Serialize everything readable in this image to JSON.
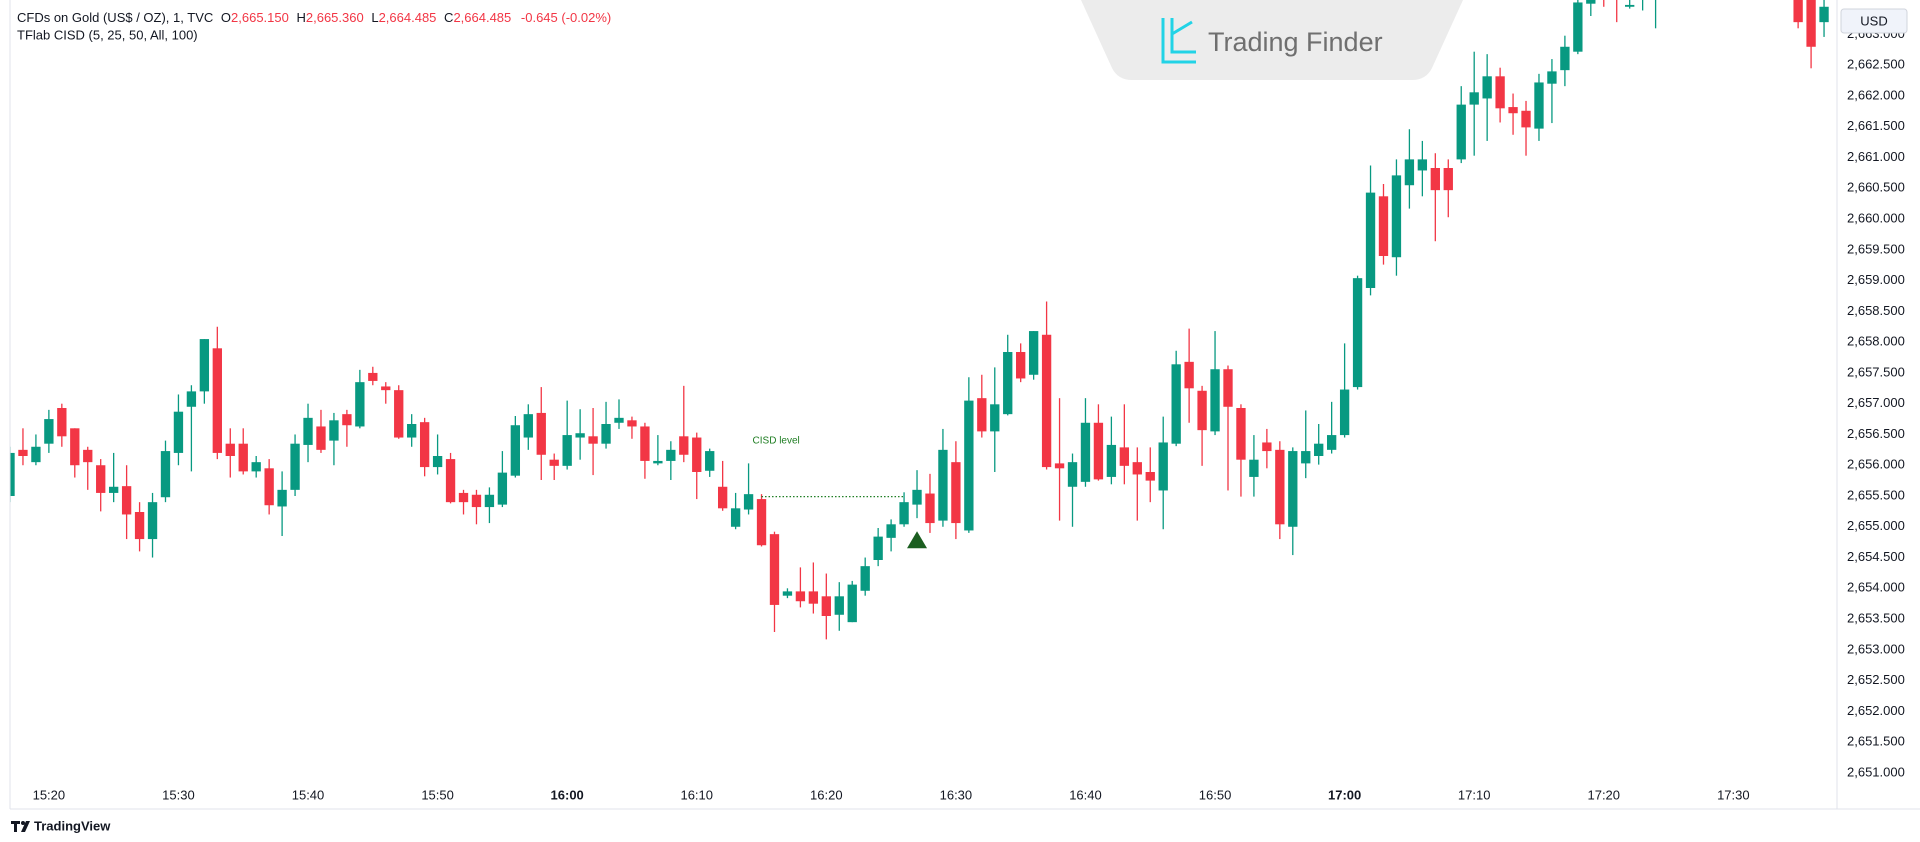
{
  "header": {
    "symbol": "CFDs on Gold (US$ / OZ), 1, TVC",
    "ohlc": [
      {
        "label": "O",
        "value": "2,665.150"
      },
      {
        "label": "H",
        "value": "2,665.360"
      },
      {
        "label": "L",
        "value": "2,664.485"
      },
      {
        "label": "C",
        "value": "2,664.485"
      }
    ],
    "change": "-0.645 (-0.02%)",
    "indicator": "TFlab CISD (5, 25, 50, All, 100)",
    "currency": "USD",
    "watermark": "Trading Finder",
    "brand": "TradingView"
  },
  "chart_data": {
    "type": "candlestick",
    "up_color": "#089981",
    "down_color": "#f23645",
    "grid": false,
    "x": [
      "15:17",
      "15:18",
      "15:19",
      "15:20",
      "15:21",
      "15:22",
      "15:23",
      "15:24",
      "15:25",
      "15:26",
      "15:27",
      "15:28",
      "15:29",
      "15:30",
      "15:31",
      "15:32",
      "15:33",
      "15:34",
      "15:35",
      "15:36",
      "15:37",
      "15:38",
      "15:39",
      "15:40",
      "15:41",
      "15:42",
      "15:43",
      "15:44",
      "15:45",
      "15:46",
      "15:47",
      "15:48",
      "15:49",
      "15:50",
      "15:51",
      "15:52",
      "15:53",
      "15:54",
      "15:55",
      "15:56",
      "15:57",
      "15:58",
      "15:59",
      "16:00",
      "16:01",
      "16:02",
      "16:03",
      "16:04",
      "16:05",
      "16:06",
      "16:07",
      "16:08",
      "16:09",
      "16:10",
      "16:11",
      "16:12",
      "16:13",
      "16:14",
      "16:15",
      "16:16",
      "16:17",
      "16:18",
      "16:19",
      "16:20",
      "16:21",
      "16:22",
      "16:23",
      "16:24",
      "16:25",
      "16:26",
      "16:27",
      "16:28",
      "16:29",
      "16:30",
      "16:31",
      "16:32",
      "16:33",
      "16:34",
      "16:35",
      "16:36",
      "16:37",
      "16:38",
      "16:39",
      "16:40",
      "16:41",
      "16:42",
      "16:43",
      "16:44",
      "16:45",
      "16:46",
      "16:47",
      "16:48",
      "16:49",
      "16:50",
      "16:51",
      "16:52",
      "16:53",
      "16:54",
      "16:55",
      "16:56",
      "16:57",
      "16:58",
      "16:59",
      "17:00",
      "17:01",
      "17:02",
      "17:03",
      "17:04",
      "17:05",
      "17:06",
      "17:07",
      "17:08",
      "17:09",
      "17:10",
      "17:11",
      "17:12",
      "17:13",
      "17:14",
      "17:15",
      "17:16",
      "17:17",
      "17:18",
      "17:19",
      "17:20",
      "17:21",
      "17:22",
      "17:23",
      "17:24",
      "17:35",
      "17:36",
      "17:37"
    ],
    "open": [
      2655.5,
      2656.25,
      2656.05,
      2656.35,
      2656.93,
      2656.6,
      2656.25,
      2656.0,
      2655.55,
      2655.66,
      2655.24,
      2654.8,
      2655.48,
      2656.2,
      2656.95,
      2657.2,
      2657.9,
      2656.35,
      2656.35,
      2655.9,
      2655.95,
      2655.33,
      2655.6,
      2656.33,
      2656.63,
      2656.4,
      2656.83,
      2656.63,
      2657.5,
      2657.28,
      2657.22,
      2656.45,
      2656.7,
      2655.97,
      2656.1,
      2655.55,
      2655.52,
      2655.32,
      2655.36,
      2655.83,
      2656.45,
      2656.85,
      2656.09,
      2655.99,
      2656.45,
      2656.47,
      2656.35,
      2656.69,
      2656.73,
      2656.63,
      2656.03,
      2656.07,
      2656.47,
      2656.45,
      2655.91,
      2655.65,
      2655.0,
      2655.28,
      2655.45,
      2654.88,
      2653.88,
      2653.95,
      2653.95,
      2653.87,
      2653.57,
      2653.45,
      2653.96,
      2654.46,
      2654.82,
      2655.04,
      2655.36,
      2655.54,
      2655.1,
      2656.05,
      2654.94,
      2657.09,
      2656.55,
      2656.83,
      2657.84,
      2657.47,
      2658.12,
      2656.03,
      2655.65,
      2655.73,
      2656.69,
      2655.81,
      2656.29,
      2656.05,
      2655.89,
      2655.59,
      2656.35,
      2657.68,
      2657.21,
      2656.55,
      2657.56,
      2656.93,
      2655.81,
      2656.37,
      2656.25,
      2655.0,
      2656.03,
      2656.15,
      2656.25,
      2656.49,
      2657.27,
      2658.88,
      2660.37,
      2659.38,
      2660.55,
      2660.79,
      2660.83,
      2660.83,
      2660.97,
      2661.86,
      2661.96,
      2662.32,
      2661.82,
      2661.76,
      2661.47,
      2662.2,
      2662.42,
      2662.72,
      2663.5,
      2663.9,
      2663.8,
      2663.45,
      2663.6,
      2663.7,
      2663.8,
      2663.8,
      2663.2
    ],
    "high": [
      2656.3,
      2656.6,
      2656.5,
      2656.9,
      2657.0,
      2656.6,
      2656.3,
      2656.1,
      2656.2,
      2656.0,
      2655.4,
      2655.55,
      2656.4,
      2657.15,
      2657.3,
      2658.05,
      2658.25,
      2656.6,
      2656.6,
      2656.15,
      2656.1,
      2655.9,
      2656.5,
      2657.0,
      2656.9,
      2656.85,
      2656.9,
      2657.55,
      2657.6,
      2657.35,
      2657.3,
      2656.83,
      2656.77,
      2656.5,
      2656.2,
      2655.6,
      2655.6,
      2655.64,
      2656.23,
      2656.8,
      2656.99,
      2657.27,
      2656.19,
      2657.05,
      2656.91,
      2656.93,
      2657.03,
      2657.07,
      2656.79,
      2656.69,
      2656.49,
      2656.39,
      2657.29,
      2656.53,
      2656.27,
      2656.07,
      2655.55,
      2656.03,
      2655.53,
      2654.92,
      2654.0,
      2654.34,
      2654.42,
      2654.24,
      2654.1,
      2654.12,
      2654.5,
      2654.98,
      2655.12,
      2655.56,
      2655.92,
      2655.86,
      2656.59,
      2656.39,
      2657.43,
      2657.47,
      2657.59,
      2658.12,
      2657.98,
      2658.18,
      2658.66,
      2657.09,
      2656.19,
      2657.09,
      2656.99,
      2656.79,
      2656.99,
      2656.29,
      2656.29,
      2656.79,
      2657.86,
      2658.22,
      2657.29,
      2658.18,
      2657.62,
      2656.99,
      2656.49,
      2656.59,
      2656.39,
      2656.29,
      2656.89,
      2656.67,
      2657.03,
      2657.98,
      2659.08,
      2660.87,
      2660.57,
      2660.97,
      2661.46,
      2661.27,
      2661.07,
      2660.97,
      2662.16,
      2662.72,
      2662.68,
      2662.46,
      2662.04,
      2661.92,
      2662.36,
      2662.6,
      2662.98,
      2663.6,
      2664.0,
      2664.1,
      2664.0,
      2663.6,
      2664.0,
      2664.1,
      2664.0,
      2664.0,
      2663.6
    ],
    "low": [
      2655.4,
      2656.0,
      2656.0,
      2656.2,
      2656.3,
      2655.8,
      2655.6,
      2655.25,
      2655.4,
      2654.8,
      2654.6,
      2654.5,
      2655.4,
      2656.0,
      2655.9,
      2657.0,
      2656.1,
      2655.8,
      2655.85,
      2655.8,
      2655.2,
      2654.85,
      2655.5,
      2656.05,
      2656.2,
      2656.0,
      2656.3,
      2656.6,
      2657.3,
      2657.0,
      2656.43,
      2656.3,
      2655.82,
      2655.85,
      2655.38,
      2655.2,
      2655.04,
      2655.06,
      2655.32,
      2655.8,
      2656.25,
      2655.76,
      2655.76,
      2655.93,
      2656.09,
      2655.84,
      2656.27,
      2656.59,
      2656.43,
      2655.78,
      2656.0,
      2655.76,
      2656.05,
      2655.45,
      2655.81,
      2655.26,
      2654.96,
      2655.2,
      2654.68,
      2653.29,
      2653.84,
      2653.69,
      2653.59,
      2653.17,
      2653.31,
      2653.45,
      2653.88,
      2654.36,
      2654.6,
      2655.0,
      2655.14,
      2654.9,
      2655.0,
      2654.8,
      2654.9,
      2656.45,
      2655.89,
      2656.81,
      2657.35,
      2657.39,
      2655.93,
      2655.1,
      2655.0,
      2655.65,
      2655.75,
      2655.69,
      2655.69,
      2655.1,
      2655.4,
      2654.96,
      2656.31,
      2656.69,
      2655.99,
      2656.49,
      2655.59,
      2655.49,
      2655.49,
      2655.95,
      2654.8,
      2654.54,
      2655.79,
      2656.01,
      2656.19,
      2656.45,
      2657.23,
      2658.76,
      2659.26,
      2659.08,
      2660.17,
      2660.37,
      2659.64,
      2660.03,
      2660.91,
      2661.03,
      2661.27,
      2661.57,
      2661.37,
      2661.03,
      2661.27,
      2661.56,
      2662.16,
      2662.68,
      2663.3,
      2663.45,
      2663.2,
      2663.42,
      2663.39,
      2663.1,
      2663.1,
      2662.45,
      2662.96
    ],
    "close": [
      2656.2,
      2656.15,
      2656.3,
      2656.75,
      2656.47,
      2656.0,
      2656.05,
      2655.55,
      2655.65,
      2655.2,
      2654.8,
      2655.4,
      2656.23,
      2656.87,
      2657.2,
      2658.05,
      2656.2,
      2656.15,
      2655.9,
      2656.05,
      2655.35,
      2655.6,
      2656.35,
      2656.77,
      2656.25,
      2656.73,
      2656.65,
      2657.35,
      2657.37,
      2657.22,
      2656.45,
      2656.67,
      2655.97,
      2656.15,
      2655.4,
      2655.4,
      2655.32,
      2655.52,
      2655.88,
      2656.65,
      2656.83,
      2656.17,
      2655.99,
      2656.49,
      2656.52,
      2656.35,
      2656.67,
      2656.77,
      2656.63,
      2656.07,
      2656.07,
      2656.25,
      2656.17,
      2655.89,
      2656.23,
      2655.3,
      2655.3,
      2655.53,
      2654.7,
      2653.73,
      2653.95,
      2653.79,
      2653.75,
      2653.55,
      2653.87,
      2654.06,
      2654.36,
      2654.84,
      2655.04,
      2655.4,
      2655.6,
      2655.06,
      2656.25,
      2655.06,
      2657.05,
      2656.55,
      2656.99,
      2657.84,
      2657.41,
      2658.18,
      2655.97,
      2655.95,
      2656.05,
      2656.69,
      2655.77,
      2656.33,
      2655.99,
      2655.85,
      2655.75,
      2656.37,
      2657.64,
      2657.25,
      2656.57,
      2657.56,
      2656.95,
      2656.09,
      2656.09,
      2656.23,
      2655.04,
      2656.23,
      2656.23,
      2656.35,
      2656.49,
      2657.23,
      2659.04,
      2660.43,
      2659.4,
      2660.71,
      2660.97,
      2660.97,
      2660.47,
      2660.47,
      2661.86,
      2662.06,
      2662.32,
      2661.8,
      2661.72,
      2661.49,
      2662.22,
      2662.4,
      2662.8,
      2663.52,
      2663.9,
      2663.7,
      2663.6,
      2663.48,
      2663.8,
      2663.9,
      2663.2,
      2662.8,
      2663.45
    ],
    "xlim": [
      "15:17",
      "17:38"
    ],
    "xticks": [
      "15:20",
      "15:30",
      "15:40",
      "15:50",
      "16:00",
      "16:10",
      "16:20",
      "16:30",
      "16:40",
      "16:50",
      "17:00",
      "17:10",
      "17:20",
      "17:30"
    ],
    "ylim": [
      2650.82,
      2663.56
    ],
    "yticks": [
      {
        "value": 2651.0,
        "label": "2,651.000"
      },
      {
        "value": 2651.5,
        "label": "2,651.500"
      },
      {
        "value": 2652.0,
        "label": "2,652.000"
      },
      {
        "value": 2652.5,
        "label": "2,652.500"
      },
      {
        "value": 2653.0,
        "label": "2,653.000"
      },
      {
        "value": 2653.5,
        "label": "2,653.500"
      },
      {
        "value": 2654.0,
        "label": "2,654.000"
      },
      {
        "value": 2654.5,
        "label": "2,654.500"
      },
      {
        "value": 2655.0,
        "label": "2,655.000"
      },
      {
        "value": 2655.5,
        "label": "2,655.500"
      },
      {
        "value": 2656.0,
        "label": "2,656.000"
      },
      {
        "value": 2656.5,
        "label": "2,656.500"
      },
      {
        "value": 2657.0,
        "label": "2,657.000"
      },
      {
        "value": 2657.5,
        "label": "2,657.500"
      },
      {
        "value": 2658.0,
        "label": "2,658.000"
      },
      {
        "value": 2658.5,
        "label": "2,658.500"
      },
      {
        "value": 2659.0,
        "label": "2,659.000"
      },
      {
        "value": 2659.5,
        "label": "2,659.500"
      },
      {
        "value": 2660.0,
        "label": "2,660.000"
      },
      {
        "value": 2660.5,
        "label": "2,660.500"
      },
      {
        "value": 2661.0,
        "label": "2,661.000"
      },
      {
        "value": 2661.5,
        "label": "2,661.500"
      },
      {
        "value": 2662.0,
        "label": "2,662.000"
      },
      {
        "value": 2662.5,
        "label": "2,662.500"
      },
      {
        "value": 2663.0,
        "label": "2,663.000"
      }
    ],
    "level": {
      "text": "CISD level",
      "value": 2655.49,
      "x_start": "16:15",
      "x_end": "16:26",
      "color": "#1e7d22"
    },
    "signal": {
      "x": "16:27",
      "value": 2654.78,
      "color": "#1b5e20"
    }
  }
}
